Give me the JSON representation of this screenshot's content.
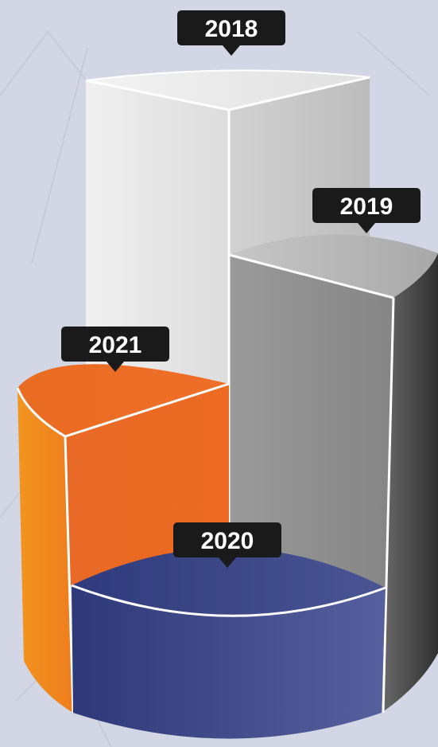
{
  "chart_data": {
    "type": "bar",
    "categories": [
      "2018",
      "2019",
      "2020",
      "2021"
    ],
    "colors": {
      "2018": "#e6e6e6",
      "2019": "#8f8f8f",
      "2020": "#3e4a8c",
      "2021": "#ec6a24"
    },
    "background": "#d3d6e4",
    "label_box_color": "#1a1a1a",
    "title": "",
    "xlabel": "",
    "ylabel": ""
  }
}
